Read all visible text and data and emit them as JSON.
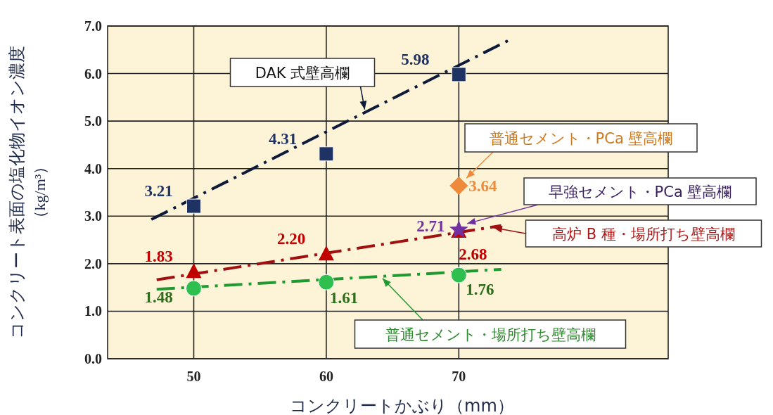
{
  "chart_data": {
    "type": "scatter",
    "xlabel": "コンクリートかぶり（mm）",
    "ylabel": "コンクリート表面の塩化物イオン濃度（kg/m³）",
    "xlim": [
      43.5,
      85.8
    ],
    "xticks": [
      50,
      60,
      70
    ],
    "ylim": [
      0,
      7
    ],
    "yticks": [
      {
        "value": 0,
        "label": "0.0"
      },
      {
        "value": 1,
        "label": "1.0"
      },
      {
        "value": 2,
        "label": "2.0"
      },
      {
        "value": 3,
        "label": "3.0"
      },
      {
        "value": 4,
        "label": "4.0"
      },
      {
        "value": 5,
        "label": "5.0"
      },
      {
        "value": 6,
        "label": "6.0"
      },
      {
        "value": 7,
        "label": "7.0"
      }
    ],
    "grid": true,
    "legend": "right",
    "series": [
      {
        "type": "line",
        "name": "DAK 式壁高欄",
        "color": "#0d1a3a",
        "line_style": "dashed",
        "marker": "none",
        "x": [
          46.8,
          73.7
        ],
        "values": [
          2.93,
          6.69
        ]
      },
      {
        "color": "#1f3264",
        "marker": "square",
        "x": [
          50,
          60,
          70
        ],
        "values": [
          3.21,
          4.31,
          5.98
        ],
        "value_labels": [
          "3.21",
          "4.31",
          "5.98"
        ]
      },
      {
        "type": "line",
        "name": "高炉 B 種・場所打ち壁高欄",
        "color": "#a01010",
        "line_style": "dashed",
        "marker": "none",
        "x": [
          47.2,
          73.2
        ],
        "values": [
          1.66,
          2.8
        ]
      },
      {
        "color": "#c00000",
        "marker": "triangle",
        "x": [
          50,
          60,
          70
        ],
        "values": [
          1.83,
          2.2,
          2.68
        ],
        "value_labels": [
          "1.83",
          "2.20",
          "2.68"
        ]
      },
      {
        "type": "line",
        "name": "普通セメント・場所打ち壁高欄",
        "color": "#1f9a30",
        "line_style": "dashed",
        "marker": "none",
        "x": [
          47.2,
          73.2
        ],
        "values": [
          1.46,
          1.88
        ]
      },
      {
        "color": "#2fbf4f",
        "marker": "circle",
        "x": [
          50,
          60,
          70
        ],
        "values": [
          1.48,
          1.61,
          1.76
        ],
        "value_labels": [
          "1.48",
          "1.61",
          "1.76"
        ]
      },
      {
        "name": "普通セメント・PCa 壁高欄",
        "color": "#ee8a3c",
        "marker": "diamond",
        "x": [
          70
        ],
        "values": [
          3.64
        ],
        "value_labels": [
          "3.64"
        ]
      },
      {
        "name": "早強セメント・PCa 壁高欄",
        "color": "#7030a0",
        "marker": "star",
        "x": [
          70
        ],
        "values": [
          2.71
        ],
        "value_labels": [
          "2.71"
        ]
      }
    ]
  }
}
